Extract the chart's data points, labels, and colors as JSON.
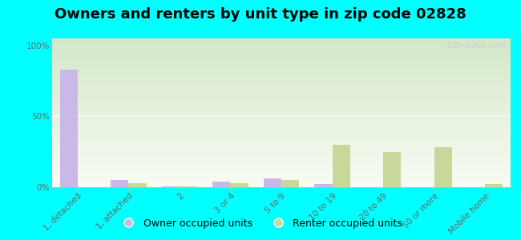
{
  "title": "Owners and renters by unit type in zip code 02828",
  "categories": [
    "1, detached",
    "1, attached",
    "2",
    "3 or 4",
    "5 to 9",
    "10 to 19",
    "20 to 49",
    "50 or more",
    "Mobile home"
  ],
  "owner_values": [
    83,
    5,
    0.5,
    4,
    6,
    2,
    0,
    0,
    0
  ],
  "renter_values": [
    0,
    3,
    0.5,
    3,
    5,
    30,
    25,
    28,
    2
  ],
  "owner_color": "#c9b8e8",
  "renter_color": "#c8d89a",
  "background_color": "#00ffff",
  "plot_bg_top": "#eef4e6",
  "plot_bg_bottom": "#d4e8c8",
  "ylabel_ticks": [
    "0%",
    "50%",
    "100%"
  ],
  "ytick_vals": [
    0,
    50,
    100
  ],
  "ylim": [
    0,
    105
  ],
  "bar_width": 0.35,
  "legend_owner": "Owner occupied units",
  "legend_renter": "Renter occupied units",
  "watermark": "City-Data.com",
  "title_fontsize": 13,
  "tick_fontsize": 7.5,
  "legend_fontsize": 9
}
